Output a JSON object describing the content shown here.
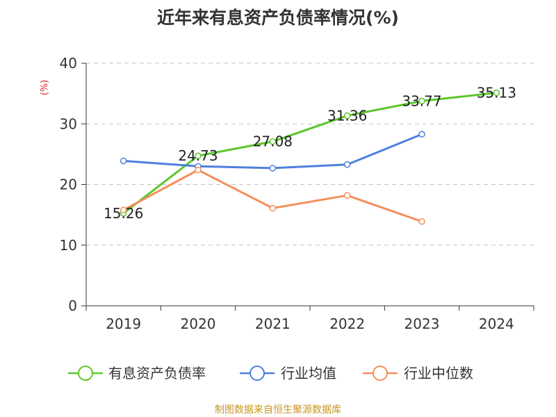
{
  "chart_data": {
    "type": "line",
    "title": "近年来有息资产负债率情况(%)",
    "ylabel": "(%)",
    "xlabel": "",
    "categories": [
      "2019",
      "2020",
      "2021",
      "2022",
      "2023",
      "2024"
    ],
    "ylim": [
      0,
      40
    ],
    "yticks": [
      0,
      10,
      20,
      30,
      40
    ],
    "grid": true,
    "legend_position": "bottom",
    "series": [
      {
        "name": "有息资产负债率",
        "color": "#5cc72b",
        "values": [
          15.26,
          24.73,
          27.08,
          31.36,
          33.77,
          35.13
        ],
        "labels": [
          "15.26",
          "24.73",
          "27.08",
          "31.36",
          "33.77",
          "35.13"
        ]
      },
      {
        "name": "行业均值",
        "color": "#4e7fdd",
        "values": [
          23.9,
          23.0,
          22.7,
          23.3,
          28.3,
          null
        ]
      },
      {
        "name": "行业中位数",
        "color": "#f58e5c",
        "values": [
          15.8,
          22.4,
          16.1,
          18.2,
          13.9,
          null
        ]
      }
    ]
  },
  "footer": {
    "source": "制图数据来自恒生聚源数据库"
  }
}
